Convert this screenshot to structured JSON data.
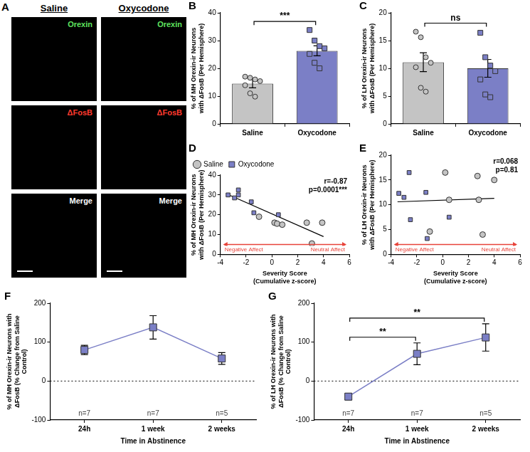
{
  "panel_a": {
    "panel": "A",
    "columns": [
      "Saline",
      "Oxycodone"
    ],
    "rows": [
      {
        "label": "Orexin",
        "color": "#5fe35f"
      },
      {
        "label": "ΔFosB",
        "color": "#ff3a2e"
      },
      {
        "label": "Merge",
        "color": "#ffffff"
      }
    ]
  },
  "chart_data": [
    {
      "panel": "B",
      "type": "bar",
      "categories": [
        "Saline",
        "Oxycodone"
      ],
      "values": [
        14.5,
        26.3
      ],
      "errors": [
        1.5,
        1.8
      ],
      "colors": [
        "#c4c4c4",
        "#7b7fc6"
      ],
      "points": [
        [
          17.0,
          16.6,
          16.0,
          15.4,
          13.9,
          11.0,
          9.8
        ],
        [
          33.8,
          30.0,
          28.0,
          27.2,
          25.2,
          22.0,
          20.0
        ]
      ],
      "significance": [
        {
          "from": "Saline",
          "to": "Oxycodone",
          "label": "***"
        }
      ],
      "ylim": [
        0,
        40
      ],
      "yticks": [
        0,
        10,
        20,
        30,
        40
      ],
      "y_label": "% of MH Orexin-ir Neurons with ΔFosB (Per Hemisphere)"
    },
    {
      "panel": "C",
      "type": "bar",
      "categories": [
        "Saline",
        "Oxycodone"
      ],
      "values": [
        11.1,
        10.0
      ],
      "errors": [
        1.7,
        1.6
      ],
      "colors": [
        "#c4c4c4",
        "#7b7fc6"
      ],
      "points": [
        [
          16.6,
          15.6,
          12.0,
          11.0,
          10.2,
          6.5,
          5.8
        ],
        [
          16.4,
          12.0,
          10.5,
          9.5,
          8.0,
          5.3,
          4.8
        ]
      ],
      "significance": [
        {
          "from": "Saline",
          "to": "Oxycodone",
          "label": "ns"
        }
      ],
      "ylim": [
        0,
        20
      ],
      "yticks": [
        0,
        5,
        10,
        15,
        20
      ],
      "y_label": "% of LH Orexin-ir Neurons with ΔFosB (Per Hemisphere)"
    },
    {
      "panel": "D",
      "type": "scatter",
      "series": [
        {
          "name": "Saline",
          "color": "#c4c4c4",
          "marker": "circle",
          "x": [
            -1.0,
            0.2,
            0.4,
            0.8,
            2.7,
            3.9,
            3.1
          ],
          "values": [
            19.0,
            16.0,
            15.5,
            15.0,
            16.0,
            16.0,
            5.5
          ]
        },
        {
          "name": "Oxycodone",
          "color": "#7b7fc6",
          "marker": "square",
          "x": [
            -3.4,
            -2.9,
            -2.6,
            -2.6,
            -1.6,
            -1.4,
            0.5
          ],
          "values": [
            30.0,
            28.5,
            30.0,
            32.5,
            26.5,
            21.0,
            20.0
          ]
        }
      ],
      "fit": {
        "x": [
          -3.5,
          4.0
        ],
        "values": [
          30.5,
          9.0
        ]
      },
      "annotations": [
        "r=-0.87",
        "p=0.0001***"
      ],
      "affect": {
        "left": "Negative Affect",
        "right": "Neutral Affect",
        "color": "#e8433a"
      },
      "xlim": [
        -4,
        6
      ],
      "xticks": [
        -4,
        -2,
        0,
        2,
        4,
        6
      ],
      "ylim": [
        0,
        40
      ],
      "yticks": [
        0,
        10,
        20,
        30,
        40
      ],
      "x_label": [
        "Severity Score",
        "(Cumulative z-score)"
      ],
      "y_label": "% of MH Orexin-ir Neurons with ΔFosB (Per Hemisphere)",
      "legend": "top"
    },
    {
      "panel": "E",
      "type": "scatter",
      "series": [
        {
          "name": "Saline",
          "color": "#c4c4c4",
          "marker": "circle",
          "x": [
            -1.0,
            0.2,
            0.5,
            2.7,
            2.8,
            3.1,
            4.0
          ],
          "values": [
            4.6,
            16.5,
            11.0,
            15.8,
            11.0,
            4.0,
            15.0
          ]
        },
        {
          "name": "Oxycodone",
          "color": "#7b7fc6",
          "marker": "square",
          "x": [
            -3.4,
            -3.0,
            -2.6,
            -2.5,
            -1.3,
            -1.2,
            0.5
          ],
          "values": [
            12.3,
            11.5,
            16.5,
            7.0,
            12.5,
            3.2,
            7.5
          ]
        }
      ],
      "fit": {
        "x": [
          -3.5,
          4.0
        ],
        "values": [
          10.6,
          11.3
        ]
      },
      "annotations": [
        "r=0.068",
        "p=0.81"
      ],
      "affect": {
        "left": "Negative Affect",
        "right": "Neutral Affect",
        "color": "#e8433a"
      },
      "xlim": [
        -4,
        6
      ],
      "xticks": [
        -4,
        -2,
        0,
        2,
        4,
        6
      ],
      "ylim": [
        0,
        20
      ],
      "yticks": [
        0,
        5,
        10,
        15,
        20
      ],
      "x_label": [
        "Severity Score",
        "(Cumulative z-score)"
      ],
      "y_label": "% of LH Orexin-ir Neurons with ΔFosB (Per Hemisphere)"
    },
    {
      "panel": "F",
      "type": "line",
      "categories": [
        "24h",
        "1 week",
        "2 weeks"
      ],
      "values": [
        80,
        138,
        58
      ],
      "errors": [
        12,
        30,
        15
      ],
      "color": "#7b7fc6",
      "marker": "square",
      "n_labels": [
        "n=7",
        "n=7",
        "n=5"
      ],
      "baseline": 0,
      "ylim": [
        -100,
        200
      ],
      "yticks": [
        -100,
        0,
        100,
        200
      ],
      "x_label": "Time in Abstinence",
      "y_label": "% of MH Orexin-ir Neurons with ΔFosB (% Change from Saline Control)"
    },
    {
      "panel": "G",
      "type": "line",
      "categories": [
        "24h",
        "1 week",
        "2 weeks"
      ],
      "values": [
        -40,
        70,
        112
      ],
      "errors": [
        8,
        28,
        35
      ],
      "color": "#7b7fc6",
      "marker": "square",
      "n_labels": [
        "n=7",
        "n=7",
        "n=5"
      ],
      "baseline": 0,
      "significance": [
        {
          "from": "24h",
          "to": "1 week",
          "label": "**"
        },
        {
          "from": "24h",
          "to": "2 weeks",
          "label": "**"
        }
      ],
      "ylim": [
        -100,
        200
      ],
      "yticks": [
        -100,
        0,
        100,
        200
      ],
      "x_label": "Time in Abstinence",
      "y_label": "% of LH Orexin-ir Neurons with ΔFosB (% Change from Saline Control)"
    }
  ]
}
